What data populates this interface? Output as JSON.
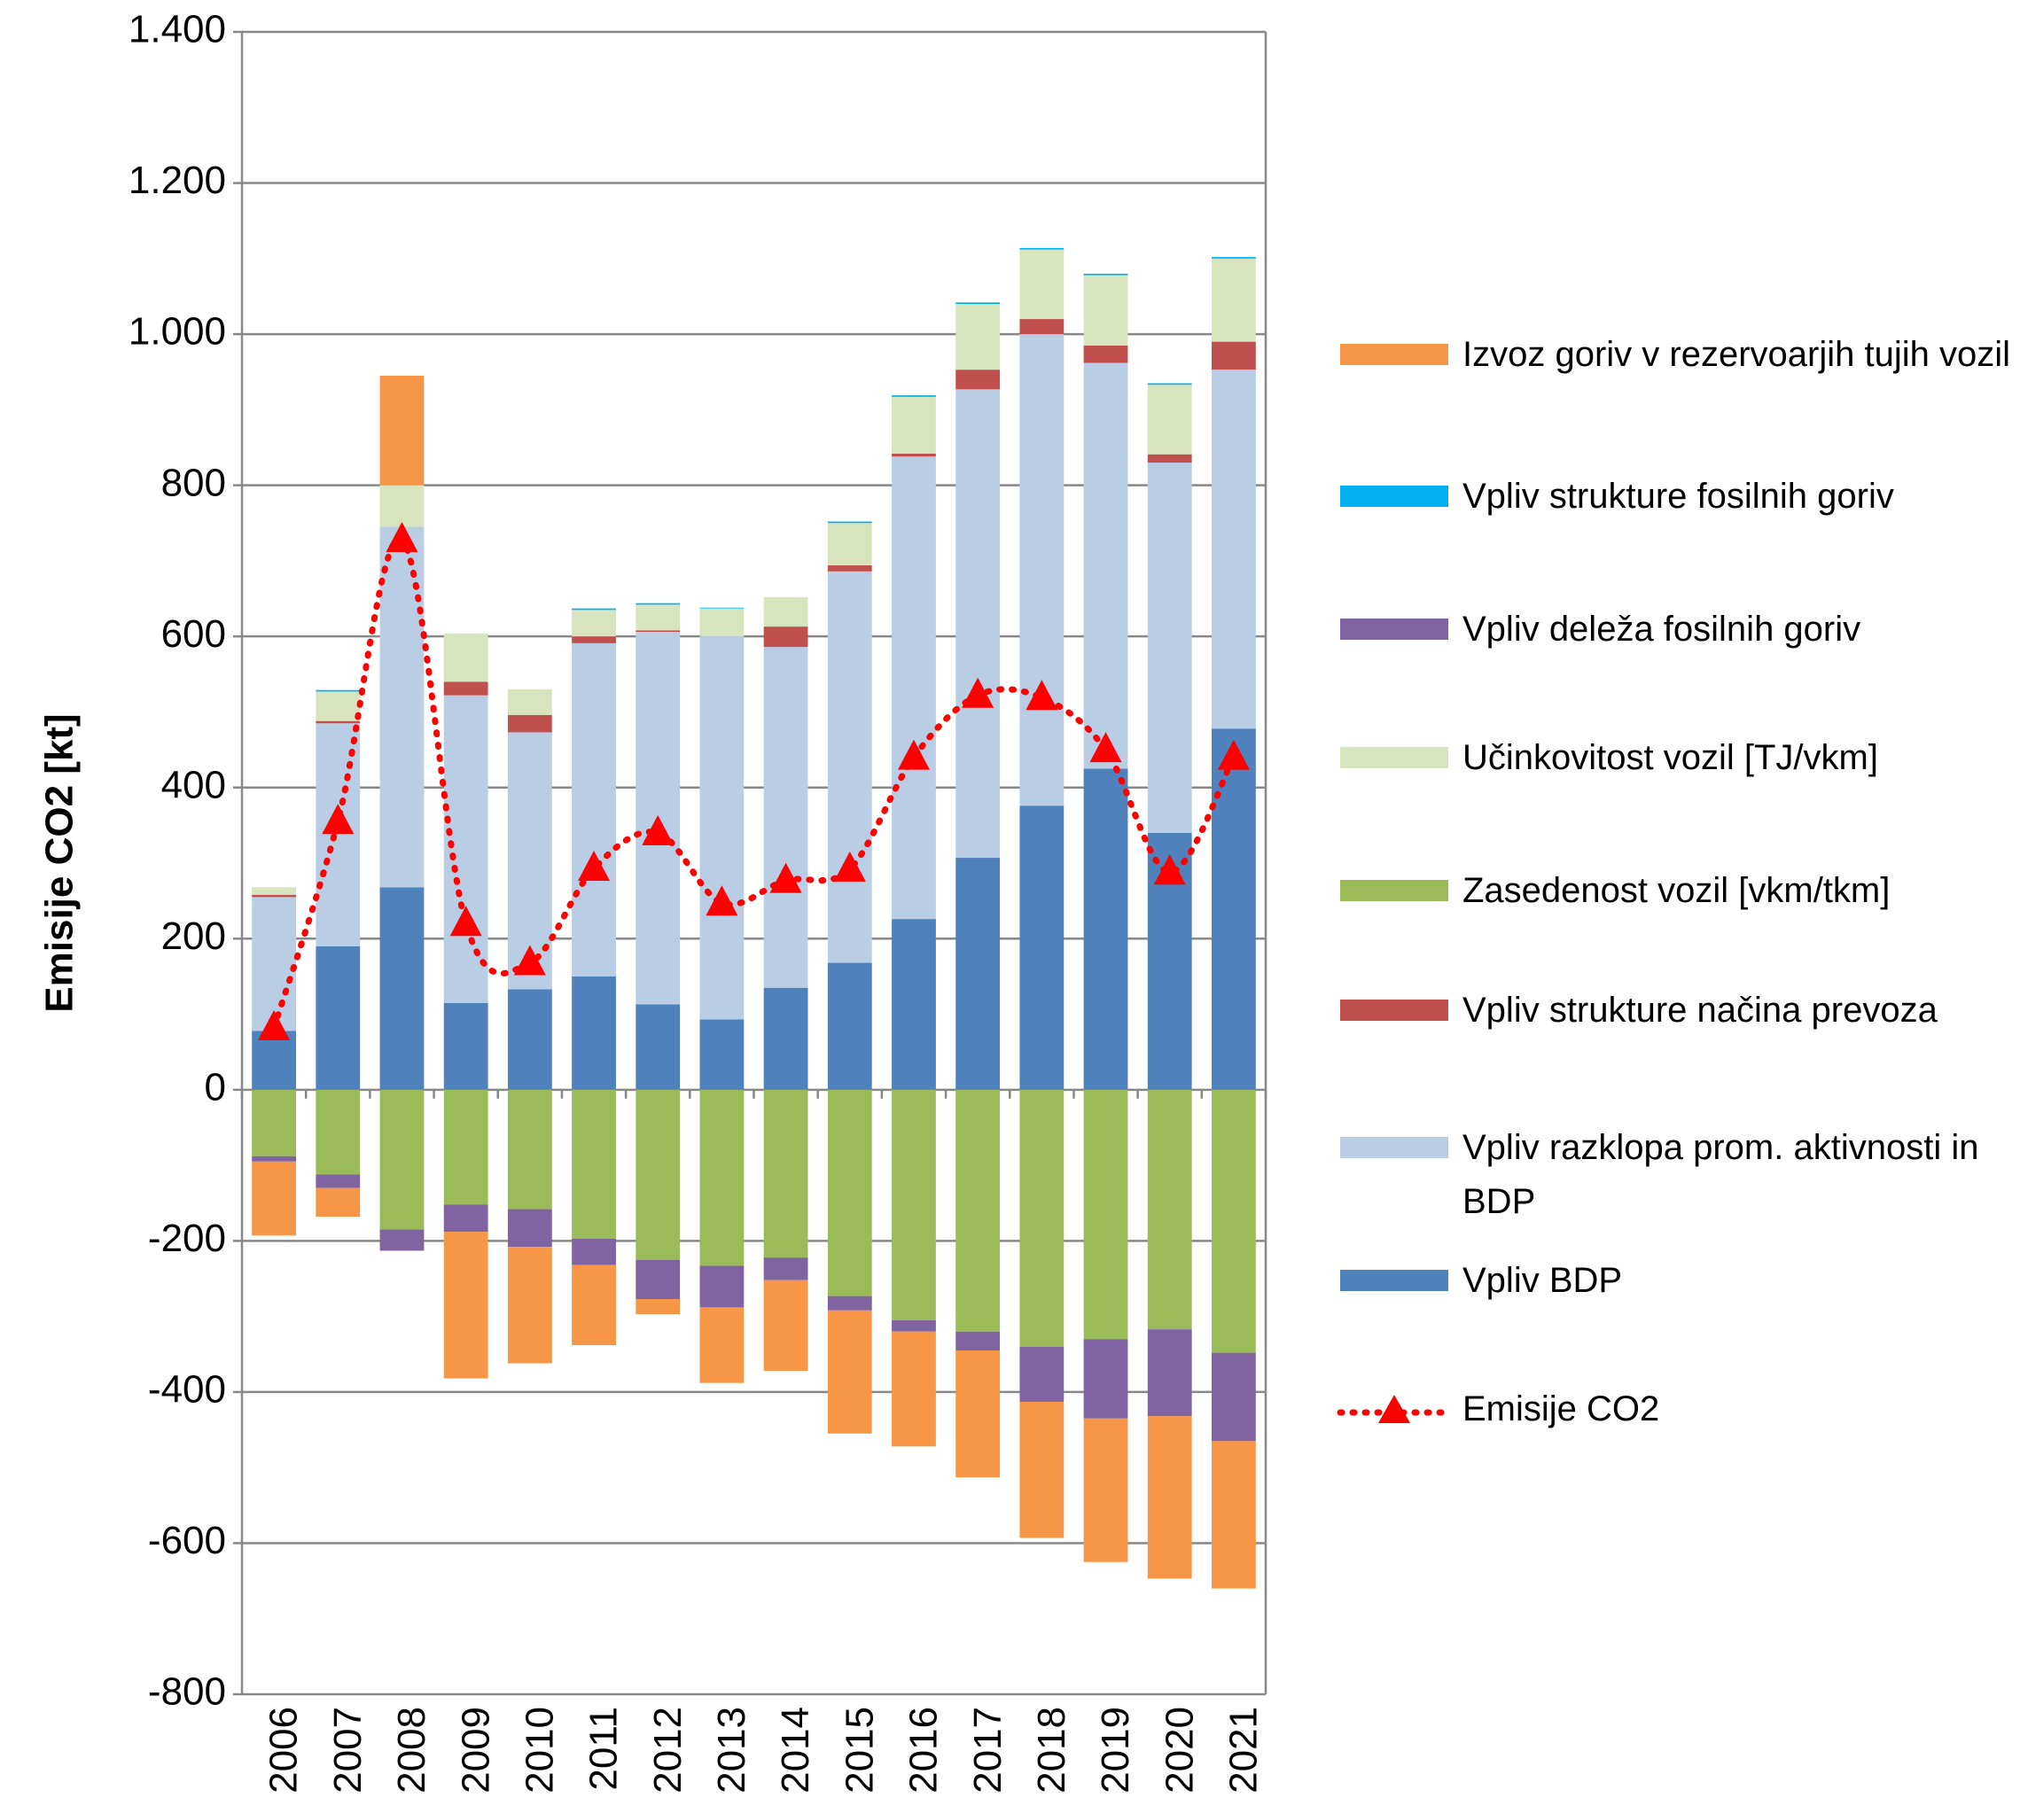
{
  "chart_data": {
    "type": "bar",
    "y_label": "Emisije CO2 [kt]",
    "categories": [
      "2006",
      "2007",
      "2008",
      "2009",
      "2010",
      "2011",
      "2012",
      "2013",
      "2014",
      "2015",
      "2016",
      "2017",
      "2018",
      "2019",
      "2020",
      "2021"
    ],
    "stacked": true,
    "series": [
      {
        "name": "Vpliv BDP",
        "color": "#4f81bd",
        "values": [
          78,
          190,
          268,
          115,
          133,
          150,
          113,
          93,
          135,
          168,
          226,
          307,
          376,
          425,
          340,
          478
        ]
      },
      {
        "name": "Vpliv razklopa prom. aktivnosti in BDP",
        "color": "#b9cde5",
        "values": [
          177,
          295,
          477,
          407,
          340,
          441,
          493,
          507,
          451,
          518,
          612,
          620,
          624,
          537,
          490,
          475
        ]
      },
      {
        "name": "Vpliv strukture načina prevoza",
        "color": "#c0504d",
        "values": [
          3,
          3,
          0,
          18,
          23,
          9,
          2,
          0,
          27,
          8,
          4,
          26,
          20,
          23,
          11,
          37
        ]
      },
      {
        "name": "Zasedenost vozil [vkm/tkm]",
        "color": "#9bbb59",
        "values": [
          -88,
          -112,
          -185,
          -152,
          -158,
          -197,
          -225,
          -233,
          -222,
          -273,
          -305,
          -320,
          -340,
          -330,
          -317,
          -348
        ]
      },
      {
        "name": "Učinkovitost vozil [TJ/vkm]",
        "color": "#d7e4bd",
        "values": [
          10,
          39,
          55,
          64,
          34,
          35,
          34,
          37,
          39,
          56,
          75,
          87,
          92,
          93,
          92,
          110
        ]
      },
      {
        "name": "Vpliv deleža fosilnih goriv",
        "color": "#8064a2",
        "values": [
          -7,
          -18,
          -28,
          -36,
          -50,
          -35,
          -52,
          -55,
          -30,
          -19,
          -15,
          -25,
          -73,
          -105,
          -115,
          -117
        ]
      },
      {
        "name": "Vpliv strukture fosilnih goriv",
        "color": "#00b0f0",
        "values": [
          0,
          2,
          0,
          0,
          0,
          2,
          2,
          1,
          0,
          2,
          2,
          2,
          2,
          2,
          2,
          2
        ]
      },
      {
        "name": "Izvoz goriv v rezervoarjih tujih vozil",
        "color": "#f79646",
        "values": [
          -98,
          -38,
          145,
          -194,
          -154,
          -106,
          -20,
          -100,
          -120,
          -163,
          -152,
          -168,
          -180,
          -190,
          -215,
          -195
        ]
      }
    ],
    "line_series": {
      "name": "Emisije CO2",
      "color": "#ff0000",
      "values": [
        82,
        355,
        728,
        220,
        168,
        293,
        340,
        247,
        277,
        292,
        440,
        522,
        519,
        450,
        288,
        440
      ]
    },
    "ylim": [
      -800,
      1400
    ],
    "yticks": [
      -800,
      -600,
      -400,
      -200,
      0,
      200,
      400,
      600,
      800,
      {
        "value": 1000,
        "label": "1.000"
      },
      {
        "value": 1200,
        "label": "1.200"
      },
      {
        "value": 1400,
        "label": "1.400"
      }
    ],
    "grid": true,
    "legend": "right"
  }
}
